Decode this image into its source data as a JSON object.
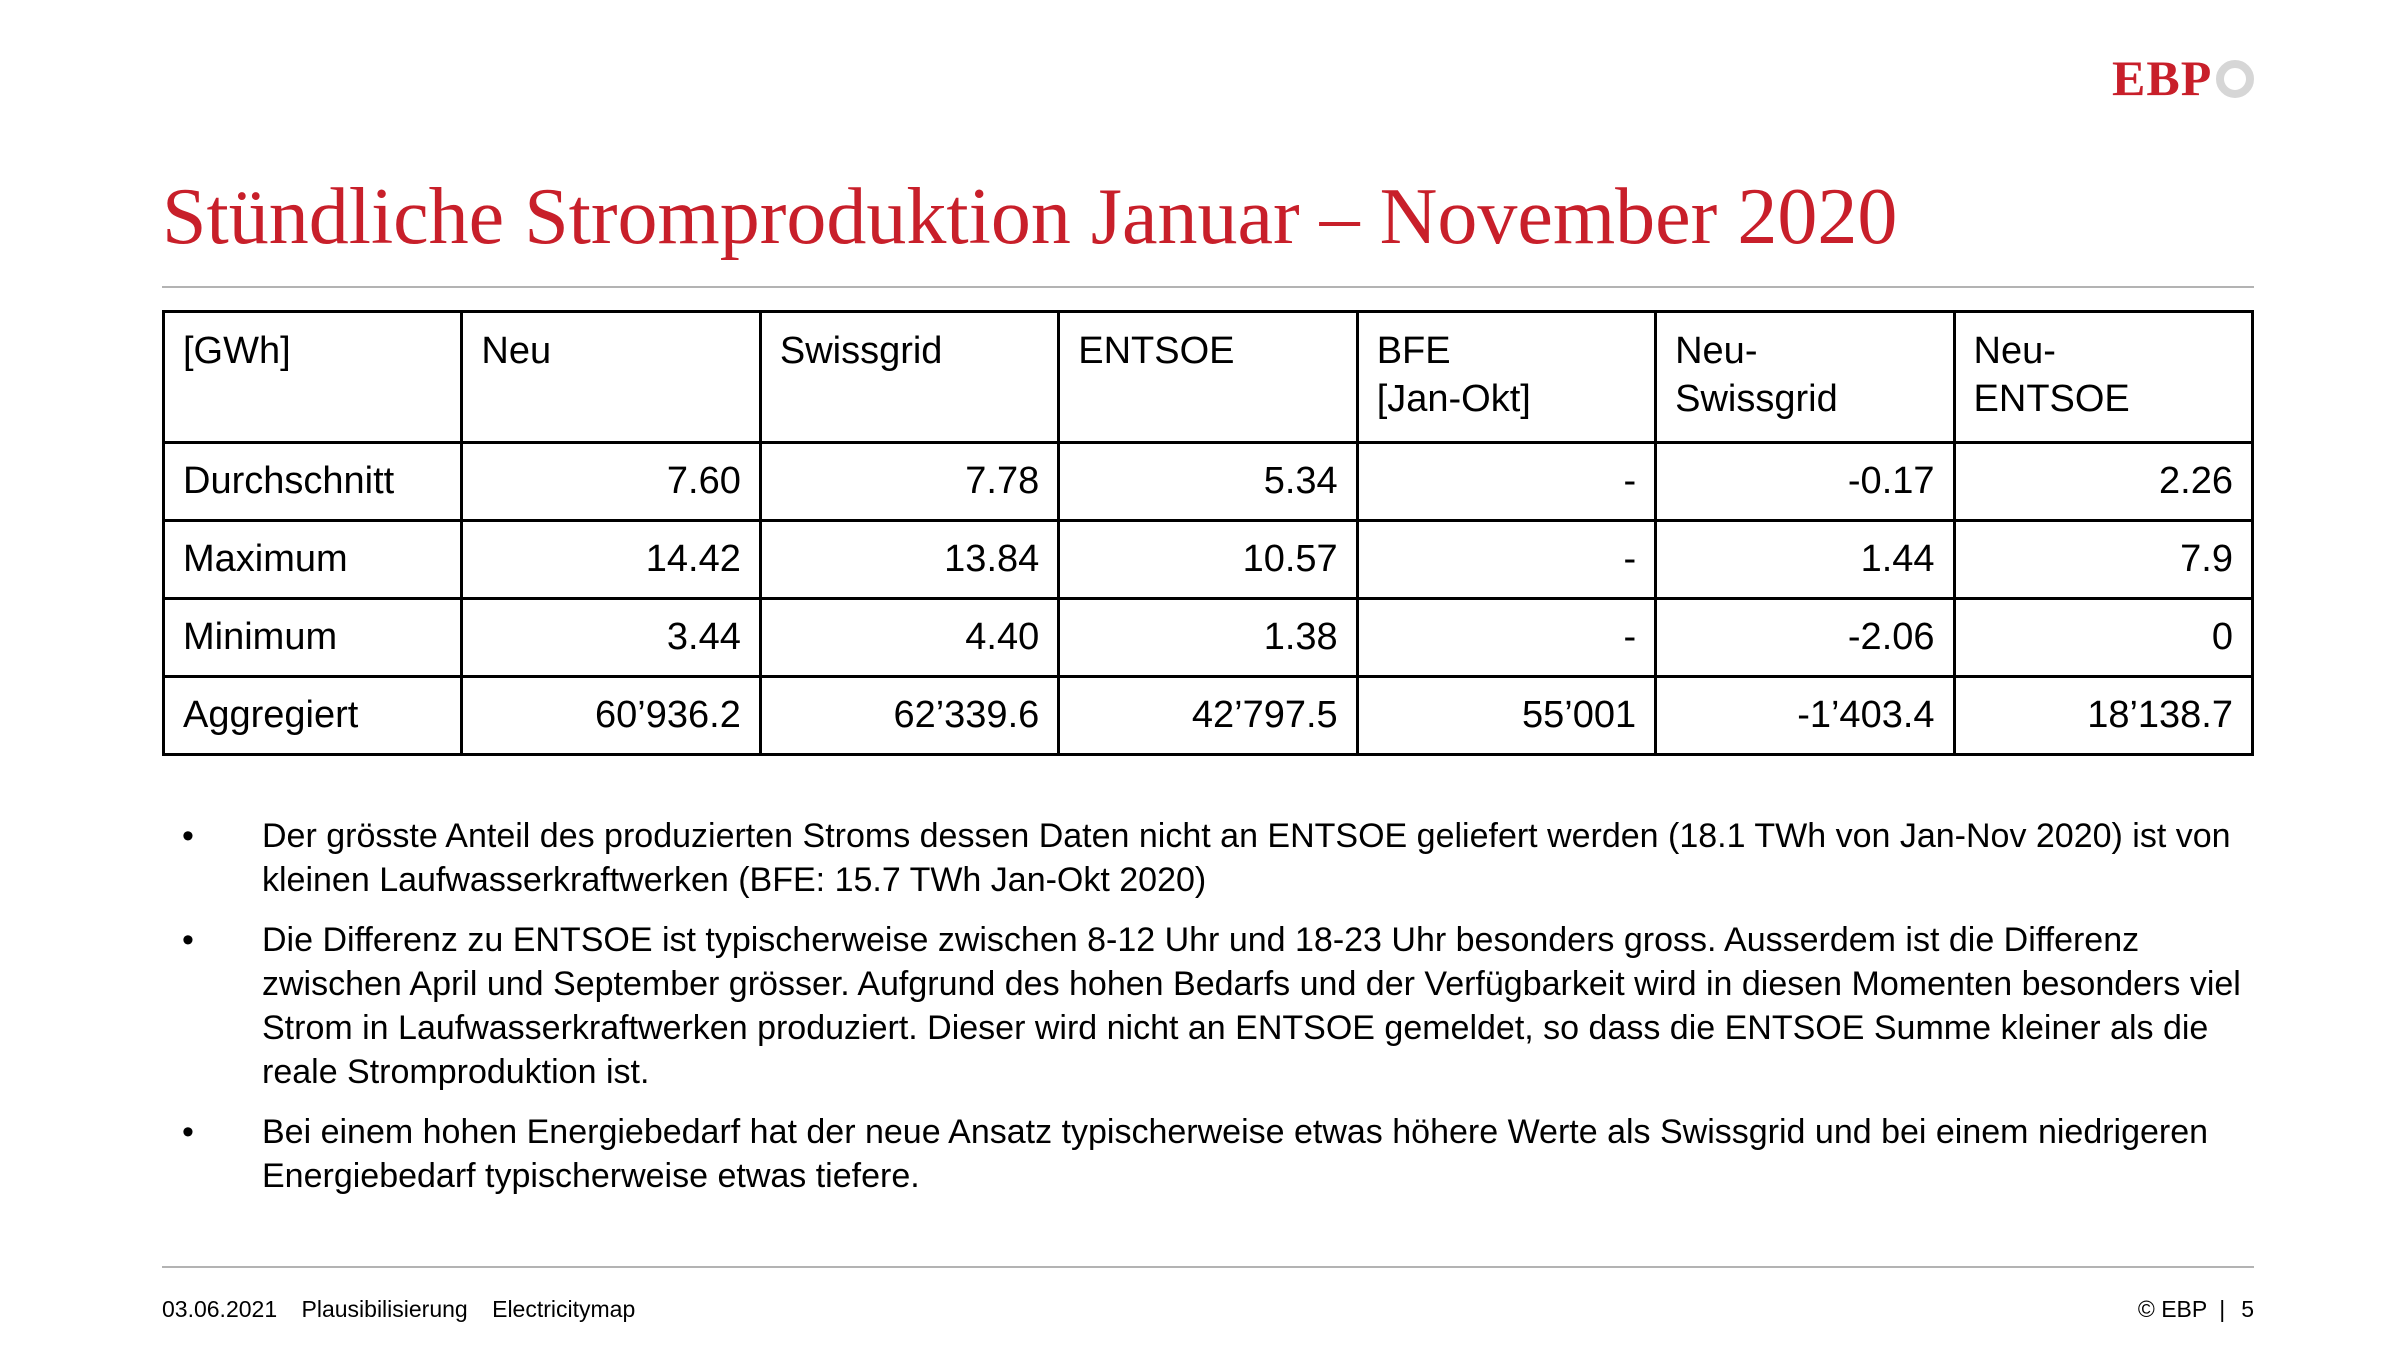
{
  "logo": {
    "text": "EBP"
  },
  "slide": {
    "title": "Stündliche Stromproduktion  Januar – November 2020"
  },
  "table": {
    "header_row": [
      {
        "line1": "[GWh]",
        "line2": ""
      },
      {
        "line1": "Neu",
        "line2": ""
      },
      {
        "line1": "Swissgrid",
        "line2": ""
      },
      {
        "line1": "ENTSOE",
        "line2": ""
      },
      {
        "line1": "BFE",
        "line2": "[Jan-Okt]"
      },
      {
        "line1": "Neu-",
        "line2": "Swissgrid"
      },
      {
        "line1": "Neu-",
        "line2": "ENTSOE"
      }
    ],
    "rows": [
      {
        "label": "Durchschnitt",
        "values": [
          "7.60",
          "7.78",
          "5.34",
          "-",
          "-0.17",
          "2.26"
        ]
      },
      {
        "label": "Maximum",
        "values": [
          "14.42",
          "13.84",
          "10.57",
          "-",
          "1.44",
          "7.9"
        ]
      },
      {
        "label": "Minimum",
        "values": [
          "3.44",
          "4.40",
          "1.38",
          "-",
          "-2.06",
          "0"
        ]
      },
      {
        "label": "Aggregiert",
        "values": [
          "60’936.2",
          "62’339.6",
          "42’797.5",
          "55’001",
          "-1’403.4",
          "18’138.7"
        ]
      }
    ]
  },
  "bullets": [
    {
      "marker": "•",
      "text": "Der grösste Anteil des produzierten Stroms dessen Daten nicht an ENTSOE geliefert werden (18.1 TWh von Jan-Nov 2020) ist von kleinen Laufwasserkraftwerken (BFE: 15.7 TWh Jan-Okt 2020)"
    },
    {
      "marker": "•",
      "text": "Die Differenz zu ENTSOE ist typischerweise zwischen 8-12 Uhr und 18-23 Uhr besonders gross. Ausserdem ist die Differenz zwischen April und September grösser. Aufgrund des hohen Bedarfs und der Verfügbarkeit wird in diesen Momenten besonders viel Strom in Laufwasserkraftwerken produziert. Dieser wird nicht an ENTSOE gemeldet, so dass die ENTSOE Summe kleiner als die reale Stromproduktion ist."
    },
    {
      "marker": "•",
      "text": "Bei einem hohen Energiebedarf hat der neue Ansatz typischerweise etwas höhere Werte als Swissgrid und bei einem niedrigeren Energiebedarf typischerweise etwas tiefere."
    }
  ],
  "footer": {
    "date": "03.06.2021",
    "project": "Plausibilisierung",
    "topic": "Electricitymap",
    "copyright": "© EBP",
    "separator": "|",
    "page": "5"
  },
  "colors": {
    "accent": "#c81f2a",
    "rule": "#b3b3b3",
    "logo_ring": "#d6d6d6"
  }
}
